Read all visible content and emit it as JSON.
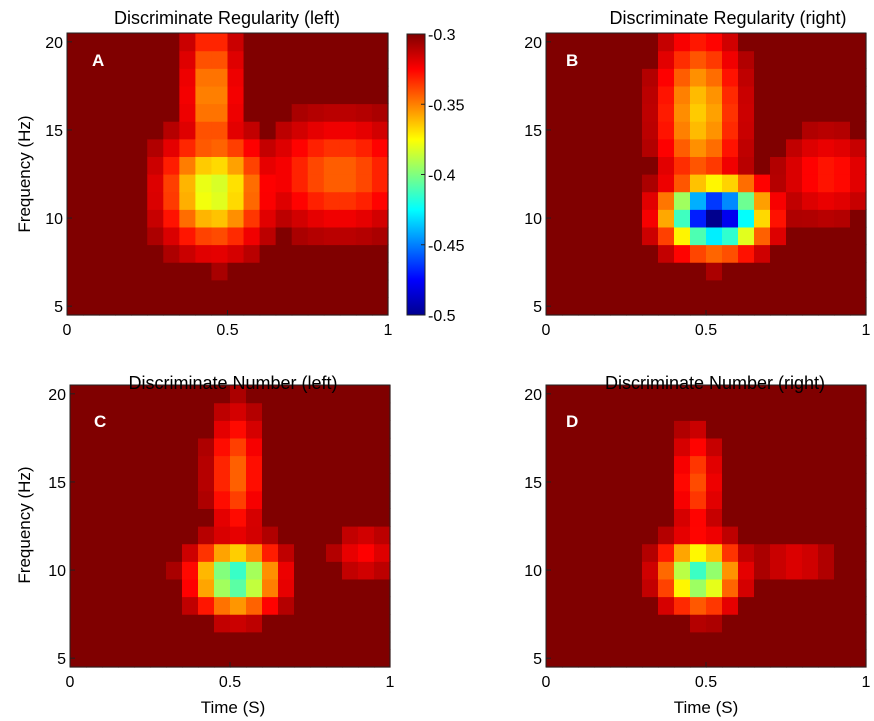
{
  "chart_data": [
    {
      "type": "heatmap",
      "panel_letter": "A",
      "title": "Discriminate Regularity (left)",
      "xlabel": "",
      "ylabel": "Frequency (Hz)",
      "xlim": [
        0,
        1
      ],
      "ylim": [
        4.5,
        20.5
      ],
      "xticks": [
        "0",
        "0.5",
        "1"
      ],
      "yticks": [
        "5",
        "10",
        "15",
        "20"
      ],
      "blobs": [
        {
          "t": 0.46,
          "f": 11.6,
          "v": -0.385,
          "wt": 0.15,
          "wf": 3.0
        },
        {
          "t": 0.45,
          "f": 17.0,
          "v": -0.355,
          "wt": 0.08,
          "wf": 4.5
        },
        {
          "t": 0.85,
          "f": 12.5,
          "v": -0.345,
          "wt": 0.22,
          "wf": 3.0
        }
      ]
    },
    {
      "type": "heatmap",
      "panel_letter": "B",
      "title": "Discriminate Regularity (right)",
      "xlabel": "",
      "ylabel": "",
      "xlim": [
        0,
        1
      ],
      "ylim": [
        4.5,
        20.5
      ],
      "xticks": [
        "0",
        "0.5",
        "1"
      ],
      "yticks": [
        "5",
        "10",
        "15",
        "20"
      ],
      "blobs": [
        {
          "t": 0.53,
          "f": 10.2,
          "v": -0.5,
          "wt": 0.14,
          "wf": 1.8
        },
        {
          "t": 0.48,
          "f": 16.0,
          "v": -0.365,
          "wt": 0.12,
          "wf": 4.5
        },
        {
          "t": 0.88,
          "f": 12.5,
          "v": -0.33,
          "wt": 0.15,
          "wf": 2.5
        }
      ]
    },
    {
      "type": "heatmap",
      "panel_letter": "C",
      "title": "Discriminate Number (left)",
      "xlabel": "Time (S)",
      "ylabel": "Frequency (Hz)",
      "xlim": [
        0,
        1
      ],
      "ylim": [
        4.5,
        20.5
      ],
      "xticks": [
        "0",
        "0.5",
        "1"
      ],
      "yticks": [
        "5",
        "10",
        "15",
        "20"
      ],
      "blobs": [
        {
          "t": 0.52,
          "f": 9.6,
          "v": -0.42,
          "wt": 0.12,
          "wf": 1.8
        },
        {
          "t": 0.52,
          "f": 15.5,
          "v": -0.345,
          "wt": 0.08,
          "wf": 3.5
        },
        {
          "t": 0.92,
          "f": 11.0,
          "v": -0.325,
          "wt": 0.1,
          "wf": 1.5
        }
      ]
    },
    {
      "type": "heatmap",
      "panel_letter": "D",
      "title": "Discriminate Number (right)",
      "xlabel": "Time (S)",
      "ylabel": "",
      "xlim": [
        0,
        1
      ],
      "ylim": [
        4.5,
        20.5
      ],
      "xticks": [
        "0",
        "0.5",
        "1"
      ],
      "yticks": [
        "5",
        "10",
        "15",
        "20"
      ],
      "blobs": [
        {
          "t": 0.48,
          "f": 9.8,
          "v": -0.415,
          "wt": 0.11,
          "wf": 1.8
        },
        {
          "t": 0.47,
          "f": 15.0,
          "v": -0.34,
          "wt": 0.07,
          "wf": 3.0
        },
        {
          "t": 0.78,
          "f": 10.5,
          "v": -0.32,
          "wt": 0.12,
          "wf": 1.5
        }
      ]
    }
  ],
  "colorbar": {
    "min": -0.5,
    "max": -0.3,
    "ticks": [
      "-0.3",
      "-0.35",
      "-0.4",
      "-0.45",
      "-0.5"
    ],
    "colormap": "jet",
    "background_color": "#800000"
  }
}
